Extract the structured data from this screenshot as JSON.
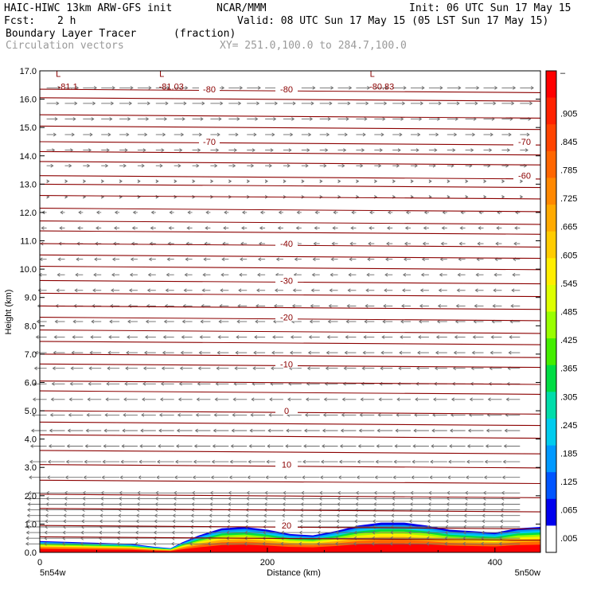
{
  "header": {
    "model": "HAIC-HIWC 13km ARW-GFS init",
    "org": "NCAR/MMM",
    "init": "Init: 06 UTC Sun 17 May 15",
    "fcst_label": "Fcst:",
    "fcst_value": "2 h",
    "valid": "Valid: 08 UTC Sun 17 May 15 (05 LST Sun 17 May 15)",
    "field_name": "Boundary Layer Tracer",
    "field_units": "(fraction)",
    "vector_name": "Circulation vectors",
    "xsec": "XY= 251.0,100.0 to 284.7,100.0"
  },
  "chart_data": {
    "type": "cross-section",
    "xlabel": "Distance (km)",
    "ylabel": "Height (km)",
    "xlim": [
      0,
      440
    ],
    "ylim": [
      0,
      17
    ],
    "xticks": [
      "0",
      "200",
      "400"
    ],
    "xtick_values": [
      0,
      200,
      400
    ],
    "yticks": [
      "0.0",
      "1.0",
      "2.0",
      "3.0",
      "4.0",
      "5.0",
      "6.0",
      "7.0",
      "8.0",
      "9.0",
      "10.0",
      "11.0",
      "12.0",
      "13.0",
      "14.0",
      "15.0",
      "16.0",
      "17.0"
    ],
    "left_endpoint": "5n54w",
    "right_endpoint": "5n50w",
    "temperature_contours": [
      {
        "label": "20",
        "height": 0.95
      },
      {
        "label": "10",
        "height": 3.1
      },
      {
        "label": "0",
        "height": 5.0
      },
      {
        "label": "-10",
        "height": 6.65
      },
      {
        "label": "-20",
        "height": 8.3
      },
      {
        "label": "-30",
        "height": 9.6
      },
      {
        "label": "-40",
        "height": 10.9
      },
      {
        "label": "-60",
        "height": 13.3
      },
      {
        "label": "-70",
        "height": 14.5
      },
      {
        "label": "-80",
        "height": 16.35
      }
    ],
    "unlabeled_contour_heights": [
      0.55,
      1.55,
      2.05,
      2.55,
      3.6,
      4.15,
      4.6,
      5.7,
      6.05,
      7.0,
      7.45,
      7.85,
      8.7,
      9.15,
      10.1,
      10.5,
      11.35,
      11.7,
      12.15,
      12.6,
      13.0,
      13.8,
      14.15,
      15.05,
      15.45,
      16.05
    ],
    "extrema": [
      {
        "marker": "L",
        "value": "-81.1",
        "x": 12,
        "height": 16.45
      },
      {
        "marker": "L",
        "value": "-81.03",
        "x": 103,
        "height": 16.45
      },
      {
        "marker": "L",
        "value": "-80.83",
        "x": 288,
        "height": 16.45
      }
    ],
    "colorbar": {
      "labels": [
        "–",
        ".905",
        ".845",
        ".785",
        ".725",
        ".665",
        ".605",
        ".545",
        ".485",
        ".425",
        ".365",
        ".305",
        ".245",
        ".185",
        ".125",
        ".065",
        ".005"
      ],
      "colors": [
        "#ff0000",
        "#ff2200",
        "#ff4400",
        "#ff6600",
        "#ff8800",
        "#ffaa00",
        "#ffcc00",
        "#ffee00",
        "#ddff00",
        "#99ff00",
        "#44ee00",
        "#00dd44",
        "#00ddaa",
        "#00ccee",
        "#0099ff",
        "#0055ff",
        "#0000ee",
        "#ffffff"
      ]
    },
    "tracer_top_profile": [
      [
        0,
        0.4
      ],
      [
        40,
        0.35
      ],
      [
        80,
        0.3
      ],
      [
        100,
        0.2
      ],
      [
        115,
        0.15
      ],
      [
        125,
        0.35
      ],
      [
        140,
        0.6
      ],
      [
        160,
        0.85
      ],
      [
        180,
        0.9
      ],
      [
        200,
        0.8
      ],
      [
        220,
        0.65
      ],
      [
        240,
        0.6
      ],
      [
        260,
        0.75
      ],
      [
        280,
        0.95
      ],
      [
        300,
        1.05
      ],
      [
        320,
        1.05
      ],
      [
        340,
        0.95
      ],
      [
        360,
        0.8
      ],
      [
        380,
        0.75
      ],
      [
        400,
        0.7
      ],
      [
        420,
        0.85
      ],
      [
        440,
        0.9
      ]
    ],
    "wind_direction": "westerly aloft (z > 13 km), easterly below"
  }
}
